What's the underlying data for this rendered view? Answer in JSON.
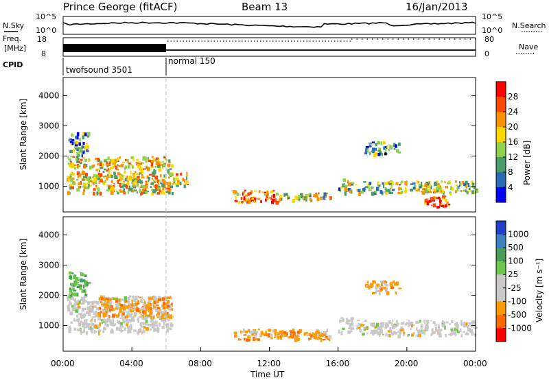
{
  "header": {
    "station": "Prince George (fitACF)",
    "beam": "Beam 13",
    "date": "16/Jan/2013"
  },
  "top_panels": {
    "nsky_label": "N.Sky",
    "nsky_ticks": [
      "10^5",
      "10^0"
    ],
    "nsearch_label": "N.Search",
    "nsearch_ticks": [
      "10^5",
      "10^0"
    ],
    "freq_label_1": "Freq.",
    "freq_label_2": "[MHz]",
    "freq_ticks": [
      "18",
      "8"
    ],
    "nave_label": "Nave",
    "nave_ticks": [
      "80",
      "0"
    ],
    "cpid_label": "CPID",
    "cpid_segments": [
      {
        "label": "twofsound 3501",
        "start_hour": 0,
        "end_hour": 6
      },
      {
        "label": "normal 150",
        "start_hour": 6,
        "end_hour": 24
      }
    ]
  },
  "time_axis": {
    "label": "Time UT",
    "ticks": [
      "00:00",
      "04:00",
      "08:00",
      "12:00",
      "16:00",
      "20:00",
      "00:00"
    ]
  },
  "chart_data": [
    {
      "type": "heatmap",
      "name": "power",
      "ylabel": "Slant Range [km]",
      "xlim": [
        0,
        24
      ],
      "ylim": [
        150,
        4600
      ],
      "yticks": [
        "1000",
        "2000",
        "3000",
        "4000"
      ],
      "colorbar_label": "Power [dB]",
      "colorbar_ticks": [
        "28",
        "24",
        "20",
        "16",
        "12",
        "8",
        "4"
      ],
      "colorbar_colors": [
        "#ff0000",
        "#ff4800",
        "#ff9000",
        "#ffd700",
        "#8fd14f",
        "#4a9a6a",
        "#2a6cb4",
        "#0000ff"
      ],
      "regions": [
        {
          "x": [
            0.2,
            6.3
          ],
          "y": [
            800,
            2000
          ],
          "level": 0.55
        },
        {
          "x": [
            0.3,
            1.5
          ],
          "y": [
            2000,
            2800
          ],
          "level": 0.3
        },
        {
          "x": [
            6.3,
            7.2
          ],
          "y": [
            1050,
            1500
          ],
          "level": 0.6
        },
        {
          "x": [
            9.8,
            12.5
          ],
          "y": [
            500,
            900
          ],
          "level": 0.75
        },
        {
          "x": [
            12.5,
            15.5
          ],
          "y": [
            550,
            800
          ],
          "level": 0.5
        },
        {
          "x": [
            16.0,
            16.8
          ],
          "y": [
            800,
            1300
          ],
          "level": 0.4
        },
        {
          "x": [
            17.0,
            24.0
          ],
          "y": [
            800,
            1200
          ],
          "level": 0.45
        },
        {
          "x": [
            17.5,
            19.5
          ],
          "y": [
            2100,
            2500
          ],
          "level": 0.25
        },
        {
          "x": [
            21.0,
            22.5
          ],
          "y": [
            350,
            700
          ],
          "level": 0.85
        }
      ]
    },
    {
      "type": "heatmap",
      "name": "velocity",
      "ylabel": "Slant Range [km]",
      "xlim": [
        0,
        24
      ],
      "ylim": [
        150,
        4600
      ],
      "yticks": [
        "1000",
        "2000",
        "3000",
        "4000"
      ],
      "colorbar_label": "Velocity [m s⁻¹]",
      "colorbar_ticks": [
        "1000",
        "500",
        "100",
        "25",
        "-25",
        "-100",
        "-500",
        "-1000"
      ],
      "colorbar_colors": [
        "#1e40c8",
        "#3f7fbf",
        "#4a9a5a",
        "#6dc84a",
        "#c8c8c8",
        "#c8c8c8",
        "#ff9a00",
        "#ff6a00",
        "#ff0000"
      ],
      "regions": [
        {
          "x": [
            0.2,
            6.3
          ],
          "y": [
            800,
            2000
          ],
          "kind": "gray"
        },
        {
          "x": [
            2.0,
            6.3
          ],
          "y": [
            1300,
            2000
          ],
          "kind": "orange"
        },
        {
          "x": [
            0.3,
            1.5
          ],
          "y": [
            2000,
            2800
          ],
          "kind": "green"
        },
        {
          "x": [
            9.8,
            15.5
          ],
          "y": [
            550,
            900
          ],
          "kind": "orange"
        },
        {
          "x": [
            16.0,
            16.8
          ],
          "y": [
            800,
            1300
          ],
          "kind": "gray"
        },
        {
          "x": [
            17.0,
            24.0
          ],
          "y": [
            700,
            1200
          ],
          "kind": "gray"
        },
        {
          "x": [
            17.5,
            19.5
          ],
          "y": [
            2100,
            2500
          ],
          "kind": "orange"
        }
      ]
    }
  ]
}
